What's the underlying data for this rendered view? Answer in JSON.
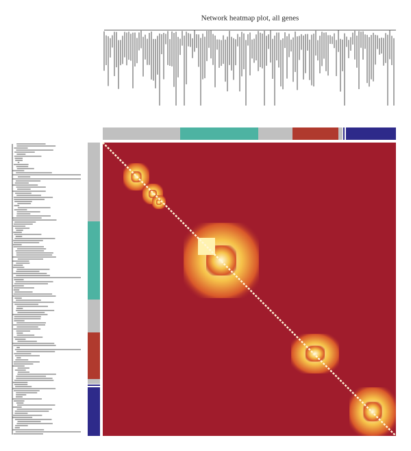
{
  "figure": {
    "title": "Network heatmap plot, all genes"
  }
}
